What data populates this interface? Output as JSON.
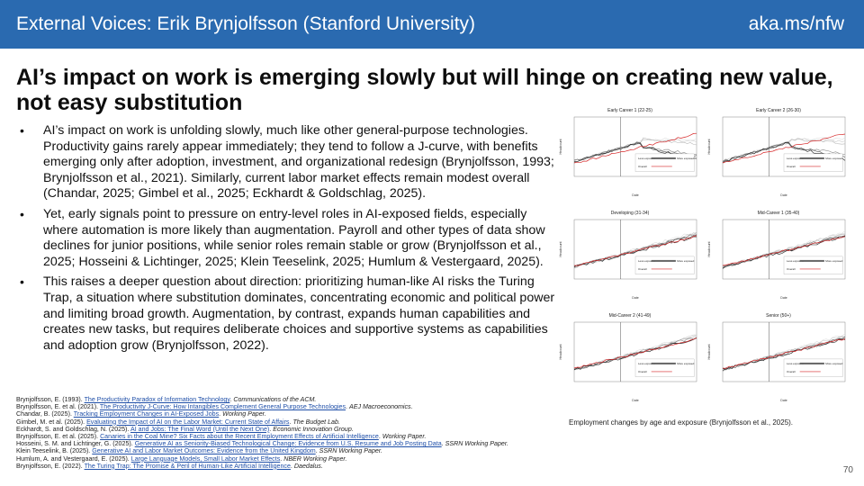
{
  "header": {
    "title": "External Voices:  Erik Brynjolfsson (Stanford University)",
    "link": "aka.ms/nfw"
  },
  "headline": "AI’s impact on work is emerging slowly but will hinge on creating new value, not easy substitution",
  "bullets": [
    "AI’s impact on work is unfolding slowly, much like other general-purpose technologies. Productivity gains rarely appear immediately; they tend to follow a J-curve, with benefits emerging only after adoption, investment, and organizational redesign (Brynjolfsson, 1993; Brynjolfsson et al., 2021). Similarly, current labor market effects remain modest overall (Chandar, 2025; Gimbel et al., 2025; Eckhardt & Goldschlag, 2025).",
    "Yet, early signals point to pressure on entry-level roles in AI-exposed fields, especially where automation is more likely than augmentation. Payroll and other types of data show declines for junior positions, while senior roles remain stable or grow (Brynjolfsson et al., 2025; Hosseini & Lichtinger, 2025; Klein Teeselink, 2025; Humlum & Vestergaard, 2025).",
    "This raises a deeper question about direction: prioritizing human-like AI risks the Turing Trap, a situation where substitution dominates, concentrating economic and political power and limiting broad growth. Augmentation, by contrast, expands human capabilities and creates new tasks, but requires deliberate choices and supportive systems as capabilities and adoption grow (Brynjolfsson, 2022)."
  ],
  "references": [
    {
      "pre": "Brynjolfsson, E. (1993). ",
      "link": "The Productivity Paradox of Information Technology",
      "post": ". ",
      "ital": "Communications of the ACM."
    },
    {
      "pre": "Brynjolfsson, E. et al. (2021). ",
      "link": "The Productivity J-Curve: How Intangibles Complement General Purpose Technologies",
      "post": ". ",
      "ital": "AEJ Macroeconomics."
    },
    {
      "pre": "Chandar, B. (2025). ",
      "link": "Tracking Employment Changes in AI-Exposed Jobs",
      "post": ". ",
      "ital": "Working Paper."
    },
    {
      "pre": "Gimbel, M. et al. (2025). ",
      "link": "Evaluating the Impact of AI on the Labor Market: Current State of Affairs",
      "post": ". ",
      "ital": "The Budget Lab."
    },
    {
      "pre": "Eckhardt, S. and Goldschlag, N. (2025). ",
      "link": "AI and Jobs: The Final Word (Until the Next One)",
      "post": ". ",
      "ital": "Economic Innovation Group."
    },
    {
      "pre": "Brynjolfsson, E. et al. (2025). ",
      "link": "Canaries in the Coal Mine? Six Facts about the Recent Employment Effects of Artificial Intelligence",
      "post": ". ",
      "ital": "Working Paper."
    },
    {
      "pre": "Hosseini, S. M. and Lichtinger, G. (2025). ",
      "link": "Generative AI as Seniority-Biased Technological Change: Evidence from U.S. Resume and Job Posting Data",
      "post": ". ",
      "ital": "SSRN Working Paper."
    },
    {
      "pre": "Klein Teeselink, B. (2025). ",
      "link": "Generative AI and Labor Market Outcomes: Evidence from the United Kingdom",
      "post": ". ",
      "ital": "SSRN Working Paper."
    },
    {
      "pre": "Humlum, A. and Vestergaard, E. (2025). ",
      "link": "Large Language Models, Small Labor Market Effects",
      "post": ". ",
      "ital": "NBER Working Paper."
    },
    {
      "pre": "Brynjolfsson, E. (2022). ",
      "link": "The Turing Trap: The Promise & Peril of Human-Like Artificial Intelligence",
      "post": ". ",
      "ital": "Daedalus."
    }
  ],
  "figure": {
    "caption": "Employment changes by age and exposure (Brynjolfsson et al., 2025).",
    "ylabel": "Headcount",
    "xlabel": "Date",
    "legend": {
      "less": "Less exposed",
      "more": "More exposed",
      "overall": "Overall"
    },
    "panels": [
      {
        "title": "Early Career 1 (22-25)"
      },
      {
        "title": "Early Career 2 (26-30)"
      },
      {
        "title": "Developing (31-34)"
      },
      {
        "title": "Mid-Career 1 (35-40)"
      },
      {
        "title": "Mid-Career 2 (41-49)"
      },
      {
        "title": "Senior (50+)"
      }
    ],
    "colors": {
      "overall": "#d62728",
      "less": "#cccccc",
      "more": "#111111"
    }
  },
  "page_number": "70"
}
